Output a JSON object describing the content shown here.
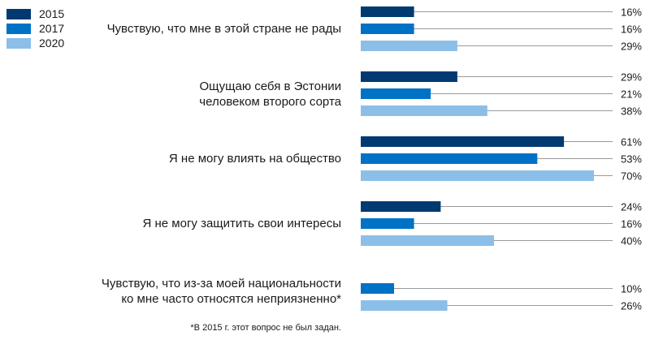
{
  "chart_data": {
    "type": "bar",
    "orientation": "horizontal",
    "legend_placement": "top-left",
    "categories": [
      "Чувствую, что мне в этой стране не рады",
      "Ощущаю себя в Эстонии\nчеловеком второго сорта",
      "Я не могу влиять на общество",
      "Я не могу защитить свои интересы",
      "Чувствую, что из-за моей национальности\nко мне часто относятся неприязненно*"
    ],
    "series": [
      {
        "name": "2015",
        "color": "#003a70",
        "values": [
          16,
          29,
          61,
          24,
          null
        ],
        "labels": [
          "16%",
          "29%",
          "61%",
          "24%",
          ""
        ]
      },
      {
        "name": "2017",
        "color": "#0072c6",
        "values": [
          16,
          21,
          53,
          16,
          10
        ],
        "labels": [
          "16%",
          "21%",
          "53%",
          "16%",
          "10%"
        ]
      },
      {
        "name": "2020",
        "color": "#8cbfe8",
        "values": [
          29,
          38,
          70,
          40,
          26
        ],
        "labels": [
          "29%",
          "38%",
          "70%",
          "40%",
          "26%"
        ]
      }
    ],
    "xlim": [
      0,
      80
    ],
    "grid": false,
    "footnote": "*В 2015 г. этот вопрос не был задан."
  }
}
